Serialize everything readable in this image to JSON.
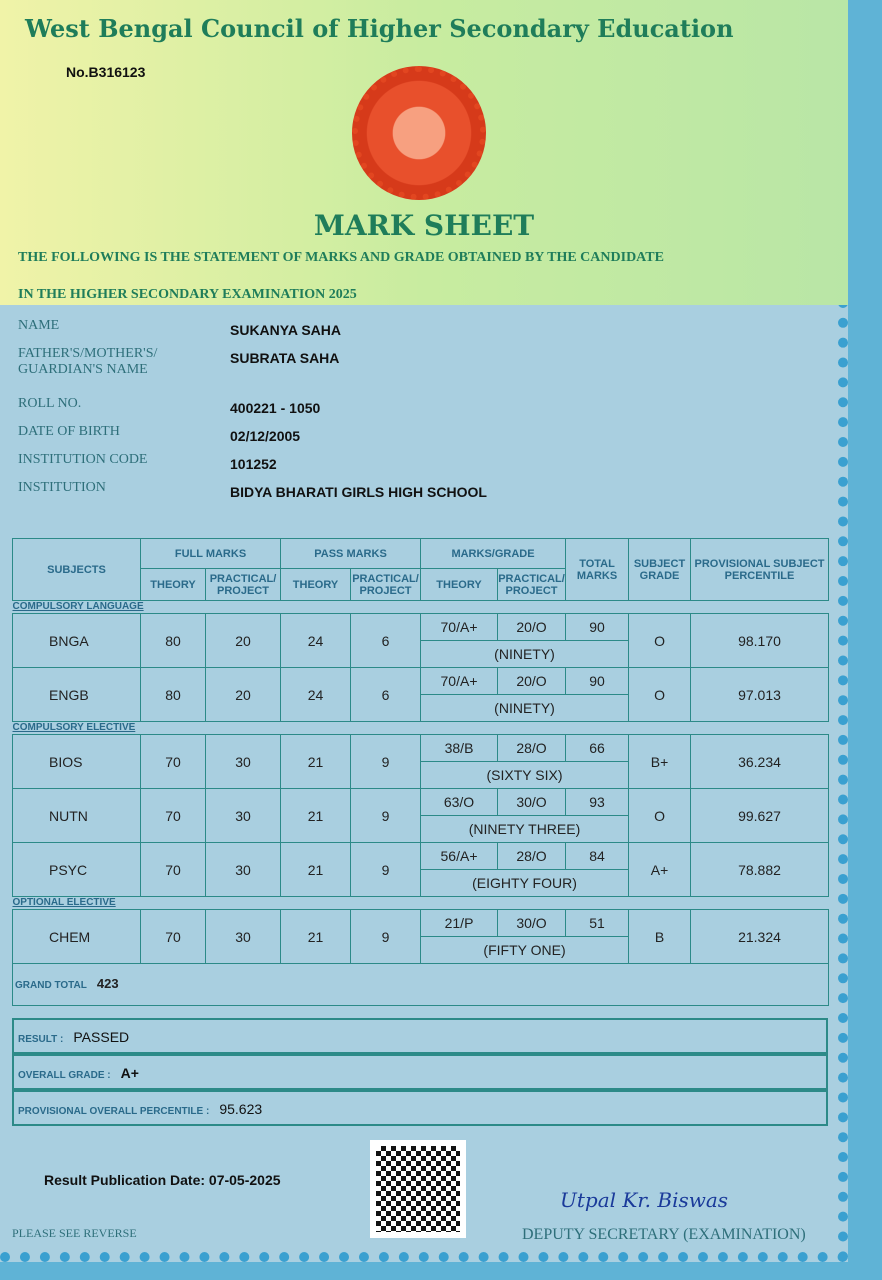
{
  "header": {
    "board": "West Bengal Council of Higher Secondary Education",
    "serial_no": "No.B316123",
    "title": "MARK SHEET",
    "statement_line1": "THE FOLLOWING IS THE STATEMENT OF MARKS AND GRADE OBTAINED BY THE CANDIDATE",
    "statement_line2": "IN THE HIGHER SECONDARY EXAMINATION 2025"
  },
  "candidate": [
    {
      "label": "NAME",
      "value": "SUKANYA SAHA"
    },
    {
      "label": "FATHER'S/MOTHER'S/ GUARDIAN'S NAME",
      "value": "SUBRATA SAHA"
    },
    {
      "label": "ROLL NO.",
      "value": "400221 - 1050"
    },
    {
      "label": "DATE OF BIRTH",
      "value": "02/12/2005"
    },
    {
      "label": "INSTITUTION CODE",
      "value": "101252"
    },
    {
      "label": "INSTITUTION",
      "value": "BIDYA BHARATI GIRLS HIGH SCHOOL"
    }
  ],
  "table": {
    "headers": {
      "subjects": "SUBJECTS",
      "full_marks": "FULL MARKS",
      "pass_marks": "PASS MARKS",
      "marks_grade": "MARKS/GRADE",
      "theory": "THEORY",
      "practical": "PRACTICAL/ PROJECT",
      "total": "TOTAL MARKS",
      "grade": "SUBJECT GRADE",
      "percentile": "PROVISIONAL SUBJECT PERCENTILE"
    },
    "sections": [
      {
        "name": "COMPULSORY LANGUAGE",
        "rows": [
          {
            "subject": "BNGA",
            "fm_th": "80",
            "fm_pr": "20",
            "pm_th": "24",
            "pm_pr": "6",
            "th": "70/A+",
            "pr": "20/O",
            "total": "90",
            "words": "(NINETY)",
            "grade": "O",
            "percentile": "98.170"
          },
          {
            "subject": "ENGB",
            "fm_th": "80",
            "fm_pr": "20",
            "pm_th": "24",
            "pm_pr": "6",
            "th": "70/A+",
            "pr": "20/O",
            "total": "90",
            "words": "(NINETY)",
            "grade": "O",
            "percentile": "97.013"
          }
        ]
      },
      {
        "name": "COMPULSORY ELECTIVE",
        "rows": [
          {
            "subject": "BIOS",
            "fm_th": "70",
            "fm_pr": "30",
            "pm_th": "21",
            "pm_pr": "9",
            "th": "38/B",
            "pr": "28/O",
            "total": "66",
            "words": "(SIXTY SIX)",
            "grade": "B+",
            "percentile": "36.234"
          },
          {
            "subject": "NUTN",
            "fm_th": "70",
            "fm_pr": "30",
            "pm_th": "21",
            "pm_pr": "9",
            "th": "63/O",
            "pr": "30/O",
            "total": "93",
            "words": "(NINETY THREE)",
            "grade": "O",
            "percentile": "99.627"
          },
          {
            "subject": "PSYC",
            "fm_th": "70",
            "fm_pr": "30",
            "pm_th": "21",
            "pm_pr": "9",
            "th": "56/A+",
            "pr": "28/O",
            "total": "84",
            "words": "(EIGHTY FOUR)",
            "grade": "A+",
            "percentile": "78.882"
          }
        ]
      },
      {
        "name": "OPTIONAL ELECTIVE",
        "rows": [
          {
            "subject": "CHEM",
            "fm_th": "70",
            "fm_pr": "30",
            "pm_th": "21",
            "pm_pr": "9",
            "th": "21/P",
            "pr": "30/O",
            "total": "51",
            "words": "(FIFTY ONE)",
            "grade": "B",
            "percentile": "21.324"
          }
        ]
      }
    ],
    "grand_total_label": "GRAND TOTAL",
    "grand_total": "423"
  },
  "result": {
    "result_label": "RESULT :",
    "result": "PASSED",
    "grade_label": "OVERALL GRADE :",
    "grade": "A+",
    "percentile_label": "PROVISIONAL OVERALL PERCENTILE :",
    "percentile": "95.623"
  },
  "footer": {
    "publication": "Result Publication Date: 07-05-2025",
    "reverse": "PLEASE SEE REVERSE",
    "signature": "Utpal Kr. Biswas",
    "signatory": "DEPUTY SECRETARY (EXAMINATION)"
  }
}
